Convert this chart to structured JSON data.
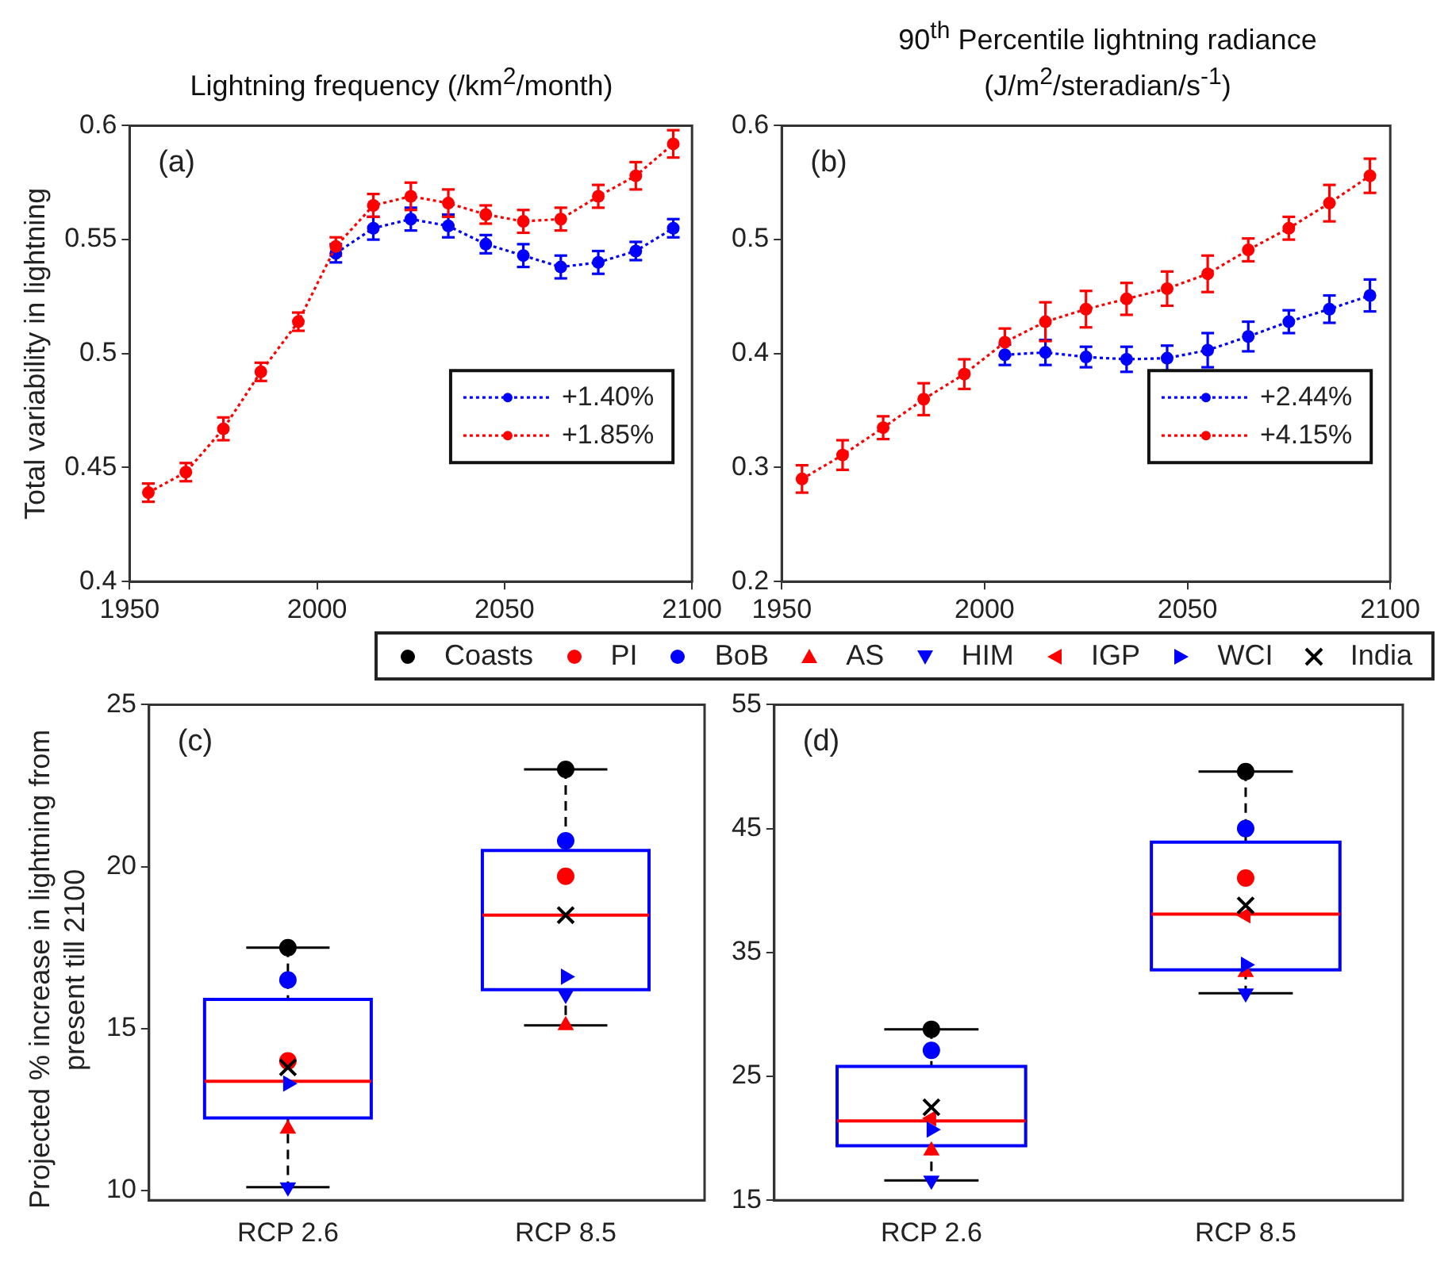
{
  "chart_data": [
    {
      "type": "line",
      "title": "Lightning frequency (/km$^{2}$/month)",
      "ylabel": "Total variability in lightning",
      "annotations": [
        "(a)"
      ],
      "x": [
        1955,
        1965,
        1975,
        1985,
        1995,
        2005,
        2015,
        2025,
        2035,
        2045,
        2055,
        2065,
        2075,
        2085,
        2095
      ],
      "series": [
        {
          "name": "+1.40%",
          "color": "#0000ff",
          "values": [
            null,
            null,
            null,
            null,
            null,
            0.544,
            0.555,
            0.559,
            0.556,
            0.548,
            0.543,
            0.538,
            0.54,
            0.545,
            0.555
          ],
          "errors": [
            null,
            null,
            null,
            null,
            null,
            0.004,
            0.005,
            0.005,
            0.005,
            0.004,
            0.005,
            0.005,
            0.005,
            0.004,
            0.004
          ]
        },
        {
          "name": "+1.85%",
          "color": "#ff0000",
          "values": [
            0.439,
            0.448,
            0.467,
            0.492,
            0.514,
            0.547,
            0.565,
            0.569,
            0.566,
            0.561,
            0.558,
            0.559,
            0.569,
            0.578,
            0.592
          ],
          "errors": [
            0.004,
            0.004,
            0.005,
            0.004,
            0.004,
            0.004,
            0.005,
            0.006,
            0.006,
            0.004,
            0.005,
            0.005,
            0.005,
            0.006,
            0.006
          ]
        }
      ],
      "xlim": [
        1950,
        2100
      ],
      "xticks": [
        1950,
        2000,
        2050,
        2100
      ],
      "ylim": [
        0.4,
        0.6
      ],
      "yticks": [
        0.4,
        0.45,
        0.5,
        0.55,
        0.6
      ],
      "grid": false,
      "legend": "bottom right",
      "marker": "circle",
      "line_style": "dotted"
    },
    {
      "type": "line",
      "title": "90$^{th}$ Percentile lightning radiance (J/m$^{2}$/steradian/s$^{-1}$)",
      "annotations": [
        "(b)"
      ],
      "x": [
        1955,
        1965,
        1975,
        1985,
        1995,
        2005,
        2015,
        2025,
        2035,
        2045,
        2055,
        2065,
        2075,
        2085,
        2095
      ],
      "series": [
        {
          "name": "+2.44%",
          "color": "#0000ff",
          "values": [
            null,
            null,
            null,
            null,
            null,
            0.399,
            0.401,
            0.397,
            0.395,
            0.396,
            0.403,
            0.415,
            0.428,
            0.439,
            0.451
          ],
          "errors": [
            null,
            null,
            null,
            null,
            null,
            0.009,
            0.011,
            0.009,
            0.011,
            0.011,
            0.015,
            0.013,
            0.01,
            0.012,
            0.014
          ]
        },
        {
          "name": "+4.15%",
          "color": "#ff0000",
          "values": [
            0.29,
            0.311,
            0.335,
            0.36,
            0.382,
            0.41,
            0.428,
            0.439,
            0.448,
            0.457,
            0.47,
            0.491,
            0.51,
            0.532,
            0.556
          ],
          "errors": [
            0.012,
            0.013,
            0.01,
            0.014,
            0.013,
            0.012,
            0.017,
            0.016,
            0.014,
            0.015,
            0.016,
            0.01,
            0.01,
            0.016,
            0.015
          ]
        }
      ],
      "xlim": [
        1950,
        2100
      ],
      "xticks": [
        1950,
        2000,
        2050,
        2100
      ],
      "ylim": [
        0.2,
        0.6
      ],
      "yticks": [
        0.2,
        0.3,
        0.4,
        0.5,
        0.6
      ],
      "grid": false,
      "legend": "bottom right",
      "marker": "circle",
      "line_style": "dotted"
    },
    {
      "type": "box",
      "ylabel": "Projected % increase in lightning from present till 2100",
      "annotations": [
        "(c)"
      ],
      "categories": [
        "RCP 2.6",
        "RCP 8.5"
      ],
      "series": [
        {
          "type": "box",
          "color": "#0000ff",
          "boxes": [
            {
              "low": 10.1,
              "q1": 12.24,
              "median": 13.37,
              "q3": 15.9,
              "high": 17.5
            },
            {
              "low": 15.1,
              "q1": 16.2,
              "median": 18.5,
              "q3": 20.5,
              "high": 23.0
            }
          ]
        },
        {
          "type": "scatter",
          "name": "Coasts",
          "color": "#000000",
          "marker": "circle",
          "x": [
            "RCP 2.6",
            "RCP 8.5"
          ],
          "values": [
            17.5,
            23.0
          ]
        },
        {
          "type": "scatter",
          "name": "PI",
          "color": "#ff0000",
          "marker": "circle",
          "x": [
            "RCP 2.6",
            "RCP 8.5"
          ],
          "values": [
            14.0,
            19.7
          ]
        },
        {
          "type": "scatter",
          "name": "BoB",
          "color": "#0000ff",
          "marker": "circle",
          "x": [
            "RCP 2.6",
            "RCP 8.5"
          ],
          "values": [
            16.5,
            20.8
          ]
        },
        {
          "type": "scatter",
          "name": "AS",
          "color": "#ff0000",
          "marker": "triangle",
          "x": [
            "RCP 2.6",
            "RCP 8.5"
          ],
          "values": [
            11.9,
            15.1
          ]
        },
        {
          "type": "scatter",
          "name": "HIM",
          "color": "#0000ff",
          "marker": "triangle-down",
          "x": [
            "RCP 2.6",
            "RCP 8.5"
          ],
          "values": [
            10.1,
            16.05
          ]
        },
        {
          "type": "scatter",
          "name": "IGP",
          "color": "#ff0000",
          "marker": "triangle-left",
          "x": [
            "RCP 2.6",
            "RCP 8.5"
          ],
          "values": [
            null,
            null
          ]
        },
        {
          "type": "scatter",
          "name": "WCI",
          "color": "#0000ff",
          "marker": "triangle-right",
          "x": [
            "RCP 2.6",
            "RCP 8.5"
          ],
          "values": [
            13.3,
            16.6
          ]
        },
        {
          "type": "scatter",
          "name": "India",
          "color": "#000000",
          "marker": "cross",
          "x": [
            "RCP 2.6",
            "RCP 8.5"
          ],
          "values": [
            13.8,
            18.5
          ]
        }
      ],
      "ylim": [
        9.7,
        25
      ],
      "yticks": [
        10,
        15,
        20,
        25
      ],
      "grid": false,
      "legend": "top"
    },
    {
      "type": "box",
      "annotations": [
        "(d)"
      ],
      "categories": [
        "RCP 2.6",
        "RCP 8.5"
      ],
      "series": [
        {
          "type": "box",
          "color": "#0000ff",
          "boxes": [
            {
              "low": 16.6,
              "q1": 19.4,
              "median": 21.4,
              "q3": 25.8,
              "high": 28.8
            },
            {
              "low": 31.7,
              "q1": 33.6,
              "median": 38.1,
              "q3": 43.9,
              "high": 49.6
            }
          ]
        },
        {
          "type": "scatter",
          "color": "#000000",
          "marker": "circle",
          "x": [
            "RCP 2.6",
            "RCP 8.5"
          ],
          "values": [
            28.8,
            49.6
          ]
        },
        {
          "type": "scatter",
          "color": "#ff0000",
          "marker": "circle",
          "x": [
            "RCP 2.6",
            "RCP 8.5"
          ],
          "values": [
            null,
            41.0
          ]
        },
        {
          "type": "scatter",
          "color": "#0000ff",
          "marker": "circle",
          "x": [
            "RCP 2.6",
            "RCP 8.5"
          ],
          "values": [
            27.1,
            45.0
          ]
        },
        {
          "type": "scatter",
          "color": "#ff0000",
          "marker": "triangle",
          "x": [
            "RCP 2.6",
            "RCP 8.5"
          ],
          "values": [
            19.0,
            33.4
          ]
        },
        {
          "type": "scatter",
          "color": "#0000ff",
          "marker": "triangle-down",
          "x": [
            "RCP 2.6",
            "RCP 8.5"
          ],
          "values": [
            16.6,
            31.7
          ]
        },
        {
          "type": "scatter",
          "color": "#ff0000",
          "marker": "triangle-left",
          "x": [
            "RCP 2.6",
            "RCP 8.5"
          ],
          "values": [
            21.6,
            38.0
          ]
        },
        {
          "type": "scatter",
          "color": "#0000ff",
          "marker": "triangle-right",
          "x": [
            "RCP 2.6",
            "RCP 8.5"
          ],
          "values": [
            20.7,
            34.0
          ]
        },
        {
          "type": "scatter",
          "color": "#000000",
          "marker": "cross",
          "x": [
            "RCP 2.6",
            "RCP 8.5"
          ],
          "values": [
            22.5,
            38.8
          ]
        }
      ],
      "ylim": [
        15,
        55
      ],
      "yticks": [
        15,
        25,
        35,
        45,
        55
      ],
      "grid": false
    }
  ]
}
